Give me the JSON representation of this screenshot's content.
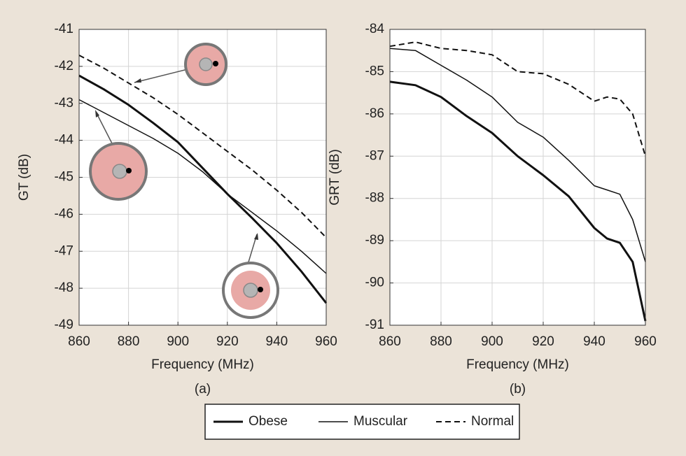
{
  "chart_data": [
    {
      "type": "line",
      "caption": "(a)",
      "ylabel": "GT (dB)",
      "xlabel": "Frequency (MHz)",
      "x": [
        860,
        870,
        880,
        890,
        900,
        910,
        920,
        930,
        940,
        950,
        960
      ],
      "xlim": [
        860,
        960
      ],
      "xticks": [
        860,
        880,
        900,
        920,
        940,
        960
      ],
      "ylim": [
        -49,
        -41
      ],
      "yticks": [
        -49,
        -48,
        -47,
        -46,
        -45,
        -44,
        -43,
        -42,
        -41
      ],
      "grid": true,
      "series": [
        {
          "name": "Obese",
          "color": "#111111",
          "style": "solid",
          "width": 3,
          "values": [
            -42.25,
            -42.62,
            -43.04,
            -43.53,
            -44.05,
            -44.75,
            -45.45,
            -46.1,
            -46.78,
            -47.55,
            -48.4
          ]
        },
        {
          "name": "Muscular",
          "color": "#111111",
          "style": "solid",
          "width": 1.5,
          "values": [
            -42.9,
            -43.25,
            -43.6,
            -43.95,
            -44.35,
            -44.85,
            -45.45,
            -45.95,
            -46.45,
            -47.0,
            -47.6
          ]
        },
        {
          "name": "Normal",
          "color": "#111111",
          "style": "dashed",
          "width": 2,
          "values": [
            -41.7,
            -42.05,
            -42.45,
            -42.85,
            -43.3,
            -43.8,
            -44.3,
            -44.8,
            -45.35,
            -45.95,
            -46.63
          ]
        }
      ]
    },
    {
      "type": "line",
      "caption": "(b)",
      "ylabel": "GRT (dB)",
      "xlabel": "Frequency (MHz)",
      "x": [
        860,
        870,
        880,
        890,
        900,
        910,
        920,
        930,
        940,
        945,
        950,
        955,
        960
      ],
      "xlim": [
        860,
        960
      ],
      "xticks": [
        860,
        880,
        900,
        920,
        940,
        960
      ],
      "ylim": [
        -91,
        -84
      ],
      "yticks": [
        -91,
        -90,
        -89,
        -88,
        -87,
        -86,
        -85,
        -84
      ],
      "grid": true,
      "series": [
        {
          "name": "Obese",
          "color": "#111111",
          "style": "solid",
          "width": 3,
          "values": [
            -85.24,
            -85.32,
            -85.6,
            -86.05,
            -86.45,
            -87.0,
            -87.45,
            -87.95,
            -88.7,
            -88.95,
            -89.05,
            -89.5,
            -90.9
          ]
        },
        {
          "name": "Muscular",
          "color": "#111111",
          "style": "solid",
          "width": 1.5,
          "values": [
            -84.45,
            -84.5,
            -84.85,
            -85.2,
            -85.6,
            -86.2,
            -86.55,
            -87.1,
            -87.7,
            -87.8,
            -87.9,
            -88.5,
            -89.5
          ]
        },
        {
          "name": "Normal",
          "color": "#111111",
          "style": "dashed",
          "width": 2,
          "values": [
            -84.4,
            -84.3,
            -84.45,
            -84.5,
            -84.6,
            -85.0,
            -85.05,
            -85.3,
            -85.7,
            -85.6,
            -85.65,
            -86.0,
            -87.0
          ]
        }
      ]
    }
  ]
}
